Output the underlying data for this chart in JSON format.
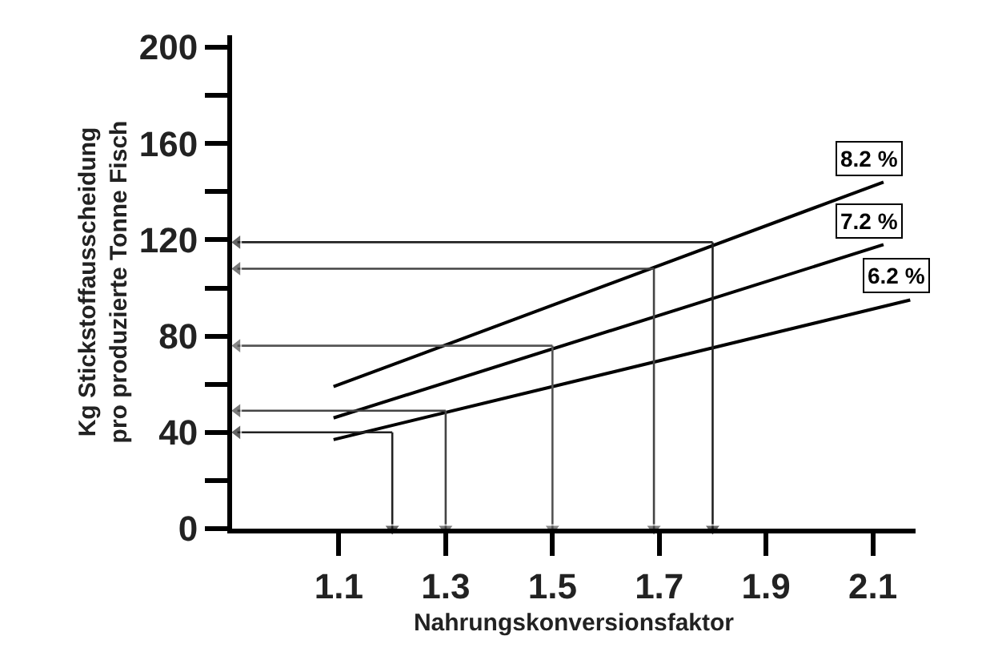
{
  "chart_data": {
    "type": "line",
    "xlabel": "Nahrungskonversionsfaktor",
    "ylabel": "Kg Stickstoffausscheidung\npro produzierte Tonne Fisch",
    "xlim": [
      0.9,
      2.18
    ],
    "xticks": [
      1.1,
      1.3,
      1.5,
      1.7,
      1.9,
      2.1
    ],
    "ylim": [
      0,
      205
    ],
    "yticks": [
      0,
      {
        "value": 20,
        "label": null
      },
      40,
      {
        "value": 60,
        "label": null
      },
      80,
      {
        "value": 100,
        "label": null
      },
      120,
      {
        "value": 140,
        "label": null
      },
      160,
      {
        "value": 180,
        "label": null
      },
      200
    ],
    "legend": false,
    "marker": "none",
    "line_style": "solid",
    "series": [
      {
        "name": "8.2 %",
        "color": "#000000",
        "x": [
          1.09,
          2.12
        ],
        "values": [
          59,
          144
        ]
      },
      {
        "name": "7.2 %",
        "color": "#000000",
        "x": [
          1.09,
          2.12
        ],
        "values": [
          46,
          118
        ]
      },
      {
        "name": "6.2 %",
        "color": "#000000",
        "x": [
          1.09,
          2.17
        ],
        "values": [
          37,
          95
        ]
      },
      {
        "color": "#222222",
        "x": [
          1.2,
          1.2
        ],
        "values": [
          40,
          0
        ],
        "marker": "triangle"
      },
      {
        "color": "#222222",
        "x": [
          1.2,
          0.91
        ],
        "values": [
          40,
          40
        ],
        "marker": "triangle"
      },
      {
        "color": "#444444",
        "x": [
          1.3,
          1.3
        ],
        "values": [
          49,
          0
        ],
        "marker": "triangle"
      },
      {
        "color": "#444444",
        "x": [
          1.3,
          0.91
        ],
        "values": [
          49,
          49
        ],
        "marker": "triangle"
      },
      {
        "color": "#555555",
        "x": [
          1.5,
          1.5
        ],
        "values": [
          76,
          0
        ],
        "marker": "triangle"
      },
      {
        "color": "#555555",
        "x": [
          1.5,
          0.91
        ],
        "values": [
          76,
          76
        ],
        "marker": "triangle"
      },
      {
        "color": "#444444",
        "x": [
          1.69,
          1.69
        ],
        "values": [
          108,
          0
        ],
        "marker": "triangle"
      },
      {
        "color": "#444444",
        "x": [
          1.69,
          0.91
        ],
        "values": [
          108,
          108
        ],
        "marker": "triangle"
      },
      {
        "color": "#222222",
        "x": [
          1.8,
          1.8
        ],
        "values": [
          119,
          0
        ],
        "marker": "triangle"
      },
      {
        "color": "#222222",
        "x": [
          1.8,
          0.91
        ],
        "values": [
          119,
          119
        ],
        "marker": "triangle"
      }
    ]
  }
}
